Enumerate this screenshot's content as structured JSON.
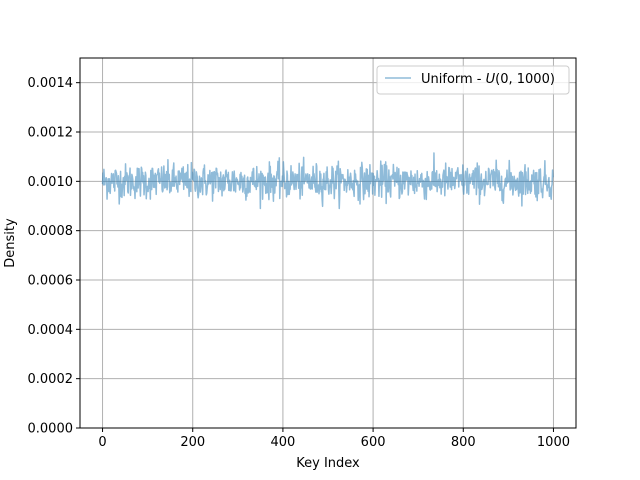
{
  "chart_data": {
    "type": "line",
    "title": "",
    "xlabel": "Key Index",
    "ylabel": "Density",
    "xlim": [
      -50,
      1050
    ],
    "ylim": [
      0,
      0.0015
    ],
    "x_ticks": [
      0,
      200,
      400,
      600,
      800,
      1000
    ],
    "y_ticks": [
      0.0,
      0.0002,
      0.0004,
      0.0006,
      0.0008,
      0.001,
      0.0012,
      0.0014
    ],
    "x_tick_labels": [
      "0",
      "200",
      "400",
      "600",
      "800",
      "1000"
    ],
    "y_tick_labels": [
      "0.0000",
      "0.0002",
      "0.0004",
      "0.0006",
      "0.0008",
      "0.0010",
      "0.0012",
      "0.0014"
    ],
    "grid": true,
    "legend_position": "top-right",
    "series": [
      {
        "name": "Uniform - U(0, 1000)",
        "color": "#1f77b4",
        "alpha": 0.5,
        "x_range": [
          0,
          999
        ],
        "mean": 0.001,
        "min_observed": 0.00089,
        "max_observed": 0.00113
      }
    ]
  },
  "legend": {
    "label_prefix": "Uniform - ",
    "label_math": "U",
    "label_args": "(0, 1000)"
  },
  "colors": {
    "series_line": "#1f77b4",
    "grid": "#b0b0b0",
    "axes": "#000000"
  }
}
